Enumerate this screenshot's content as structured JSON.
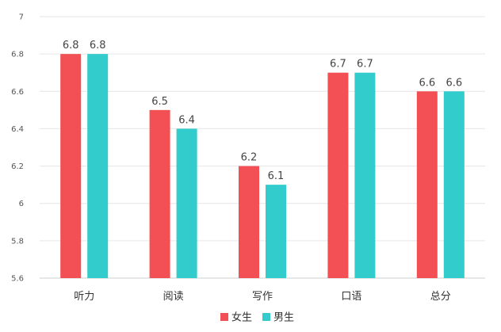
{
  "chart_data": {
    "type": "bar",
    "categories": [
      "听力",
      "阅读",
      "写作",
      "口语",
      "总分"
    ],
    "series": [
      {
        "name": "女生",
        "color": "#f25054",
        "values": [
          6.8,
          6.5,
          6.2,
          6.7,
          6.6
        ]
      },
      {
        "name": "男生",
        "color": "#33cccc",
        "values": [
          6.8,
          6.4,
          6.1,
          6.7,
          6.6
        ]
      }
    ],
    "yticks": [
      "5.6",
      "5.8",
      "6",
      "6.2",
      "6.4",
      "6.6",
      "6.8",
      "7"
    ],
    "ylim": [
      5.6,
      7
    ],
    "grid": true,
    "legend": "bottom-center",
    "data_labels": [
      [
        "6.8",
        "6.5",
        "6.2",
        "6.7",
        "6.6"
      ],
      [
        "6.8",
        "6.4",
        "6.1",
        "6.7",
        "6.6"
      ]
    ]
  }
}
